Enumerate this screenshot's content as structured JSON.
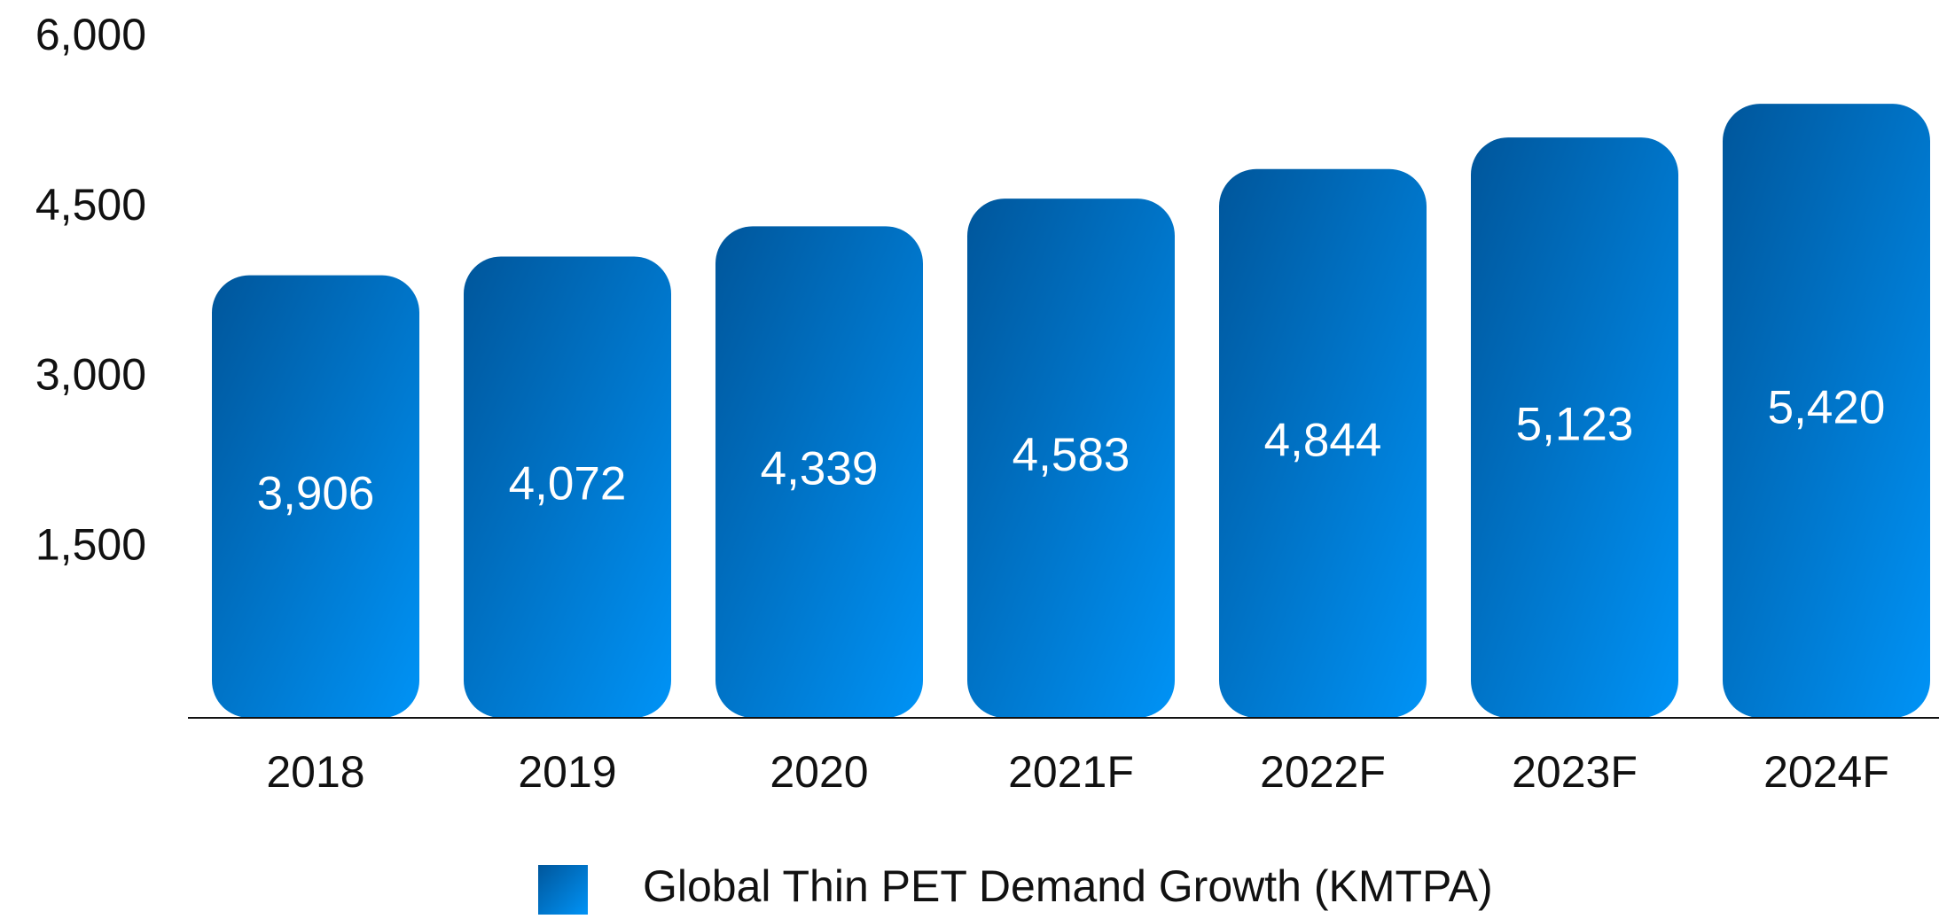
{
  "chart_data": {
    "type": "bar",
    "categories": [
      "2018",
      "2019",
      "2020",
      "2021F",
      "2022F",
      "2023F",
      "2024F"
    ],
    "series": [
      {
        "name": "Global Thin PET Demand Growth (KMTPA)",
        "color": [
          "#00569b",
          "#0093f6"
        ],
        "values": [
          3906,
          4072,
          4339,
          4583,
          4844,
          5123,
          5420
        ],
        "value_labels": [
          "3,906",
          "4,072",
          "4,339",
          "4,583",
          "4,844",
          "5,123",
          "5,420"
        ]
      }
    ],
    "ylim": [
      0,
      6000
    ],
    "yticks": [
      {
        "value": 1500,
        "label": "1,500"
      },
      {
        "value": 3000,
        "label": "3,000"
      },
      {
        "value": 4500,
        "label": "4,500"
      },
      {
        "value": 6000,
        "label": "6,000"
      }
    ],
    "grid": false,
    "legend": "bottom"
  }
}
